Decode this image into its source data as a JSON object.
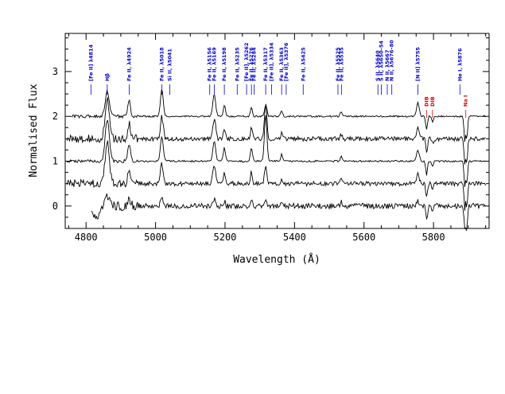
{
  "chart_data": {
    "type": "line",
    "title": "",
    "xlabel": "Wavelength (Å)",
    "ylabel": "Normalised Flux",
    "xlim": [
      4740,
      5960
    ],
    "ylim": [
      -0.5,
      3.85
    ],
    "xticks": [
      4800,
      5000,
      5200,
      5400,
      5600,
      5800
    ],
    "yticks": [
      0,
      1,
      2,
      3
    ],
    "grid": false,
    "legend": "none",
    "series_count": 5,
    "series_offsets": [
      2,
      1.5,
      1,
      0.5,
      0
    ],
    "line_color": "#000000",
    "line_ids": [
      {
        "wavelength": 4814,
        "label": "[Fe II] λ4814",
        "color": "#0000cc"
      },
      {
        "wavelength": 4861,
        "label": "Hβ",
        "color": "#0000cc"
      },
      {
        "wavelength": 4924,
        "label": "Fe II, λ4924",
        "color": "#0000cc"
      },
      {
        "wavelength": 5018,
        "label": "Fe II, λ5018",
        "color": "#0000cc"
      },
      {
        "wavelength": 5041,
        "label": "Si II, λ5041",
        "color": "#0000cc"
      },
      {
        "wavelength": 5156,
        "label": "Fe II, λ5156",
        "color": "#0000cc"
      },
      {
        "wavelength": 5169,
        "label": "Fe II, λ5169",
        "color": "#0000cc"
      },
      {
        "wavelength": 5198,
        "label": "Fe II, λ5198",
        "color": "#0000cc"
      },
      {
        "wavelength": 5235,
        "label": "Fe II, λ5235",
        "color": "#0000cc"
      },
      {
        "wavelength": 5262,
        "label": "[Fe II], λ5262",
        "color": "#0000cc"
      },
      {
        "wavelength": 5276,
        "label": "Fe II, λ5276",
        "color": "#0000cc"
      },
      {
        "wavelength": 5284,
        "label": "Fe II, λ5284",
        "color": "#0000cc"
      },
      {
        "wavelength": 5317,
        "label": "Fe II, λ5317",
        "color": "#0000cc"
      },
      {
        "wavelength": 5334,
        "label": "[Fe II], λ5334",
        "color": "#0000cc"
      },
      {
        "wavelength": 5363,
        "label": "Fe II, λ5363",
        "color": "#0000cc"
      },
      {
        "wavelength": 5376,
        "label": "[Fe II], λ5376",
        "color": "#0000cc"
      },
      {
        "wavelength": 5425,
        "label": "Fe II, λ5425",
        "color": "#0000cc"
      },
      {
        "wavelength": 5525,
        "label": "Fe II, λ5525",
        "color": "#0000cc"
      },
      {
        "wavelength": 5535,
        "label": "Fe II, λ5535",
        "color": "#0000cc"
      },
      {
        "wavelength": 5640,
        "label": "S II, λ5640",
        "color": "#0000cc"
      },
      {
        "wavelength": 5650,
        "label": "S II, λ5650–54",
        "color": "#0000cc"
      },
      {
        "wavelength": 5667,
        "label": "N II, λ5667",
        "color": "#0000cc"
      },
      {
        "wavelength": 5680,
        "label": "N II, λ5676–80",
        "color": "#0000cc"
      },
      {
        "wavelength": 5755,
        "label": "[N II] λ5755",
        "color": "#0000cc"
      },
      {
        "wavelength": 5780,
        "label": "DIB",
        "color": "#dd0000"
      },
      {
        "wavelength": 5797,
        "label": "DIB",
        "color": "#dd0000"
      },
      {
        "wavelength": 5876,
        "label": "He I, λ5876",
        "color": "#0000cc"
      },
      {
        "wavelength": 5893,
        "label": "Na I",
        "color": "#dd0000"
      }
    ]
  }
}
